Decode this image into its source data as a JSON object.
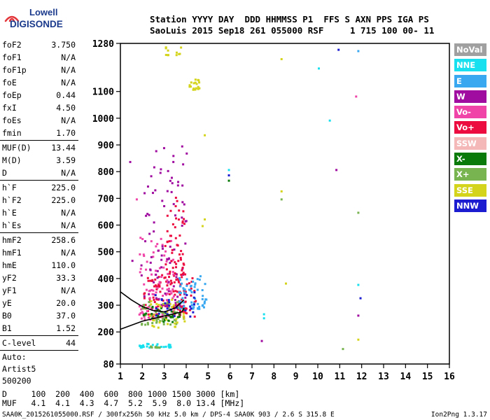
{
  "brand": {
    "line1": "Lowell",
    "line2": "DIGISONDE"
  },
  "header": {
    "row1": "Station YYYY DAY  DDD HHMMSS P1  FFS S AXN PPS IGA PS",
    "row2": "SaoLuis 2015 Sep18 261 055000 RSF     1 715 100 00- 11"
  },
  "params": {
    "group1": [
      [
        "foF2",
        "3.750"
      ],
      [
        "foF1",
        "N/A"
      ],
      [
        "foF1p",
        "N/A"
      ],
      [
        "foE",
        "N/A"
      ],
      [
        "foEp",
        "0.44"
      ],
      [
        "fxI",
        "4.50"
      ],
      [
        "foEs",
        "N/A"
      ],
      [
        "fmin",
        "1.70"
      ]
    ],
    "group2": [
      [
        "MUF(D)",
        "13.44"
      ],
      [
        "M(D)",
        "3.59"
      ],
      [
        "D",
        "N/A"
      ]
    ],
    "group3": [
      [
        "h`F",
        "225.0"
      ],
      [
        "h`F2",
        "225.0"
      ],
      [
        "h`E",
        "N/A"
      ],
      [
        "h`Es",
        "N/A"
      ]
    ],
    "group4": [
      [
        "hmF2",
        "258.6"
      ],
      [
        "hmF1",
        "N/A"
      ],
      [
        "hmE",
        "110.0"
      ],
      [
        "yF2",
        "33.3"
      ],
      [
        "yF1",
        "N/A"
      ],
      [
        "yE",
        "20.0"
      ],
      [
        "B0",
        "37.0"
      ],
      [
        "B1",
        "1.52"
      ]
    ],
    "group5": [
      [
        "C-level",
        "44"
      ]
    ],
    "auto": [
      "Auto:",
      "Artist5",
      "500200"
    ]
  },
  "legend": [
    {
      "label": "NoVal",
      "color": "#a0a0a0"
    },
    {
      "label": "NNE",
      "color": "#19e0ee"
    },
    {
      "label": "E",
      "color": "#3aa8f0"
    },
    {
      "label": "W",
      "color": "#a00ca0"
    },
    {
      "label": "Vo-",
      "color": "#f044a8"
    },
    {
      "label": "Vo+",
      "color": "#ec0c40"
    },
    {
      "label": "SSW",
      "color": "#f4b8b8"
    },
    {
      "label": "X-",
      "color": "#0a7a0a"
    },
    {
      "label": "X+",
      "color": "#78b450"
    },
    {
      "label": "SSE",
      "color": "#d4d41c"
    },
    {
      "label": "NNW",
      "color": "#1c1cd0"
    }
  ],
  "chart_data": {
    "type": "scatter",
    "xlim": [
      1,
      16
    ],
    "ylim": [
      80,
      1280
    ],
    "xticks": [
      "1",
      "2",
      "3",
      "4",
      "5",
      "6",
      "7",
      "8",
      "9",
      "10",
      "11",
      "12",
      "13",
      "14",
      "15",
      "16"
    ],
    "yticks": [
      {
        "v": 80,
        "label": "80"
      },
      {
        "v": 200,
        "label": "200"
      },
      {
        "v": 300,
        "label": "300"
      },
      {
        "v": 400,
        "label": "400"
      },
      {
        "v": 500,
        "label": "500"
      },
      {
        "v": 600,
        "label": "600"
      },
      {
        "v": 700,
        "label": "700"
      },
      {
        "v": 800,
        "label": "800"
      },
      {
        "v": 900,
        "label": "900"
      },
      {
        "v": 1000,
        "label": "1000"
      },
      {
        "v": 1100,
        "label": "1100"
      },
      {
        "v": 1280,
        "label": "1280"
      }
    ],
    "clusters": [
      {
        "series": "Vo+",
        "color": "#ec0c40",
        "x": [
          2.0,
          4.4
        ],
        "y": [
          260,
          420
        ],
        "n": 140
      },
      {
        "series": "Vo-",
        "color": "#f044a8",
        "x": [
          1.8,
          3.4
        ],
        "y": [
          250,
          560
        ],
        "n": 90
      },
      {
        "series": "W",
        "color": "#a00ca0",
        "x": [
          1.9,
          4.0
        ],
        "y": [
          300,
          900
        ],
        "n": 90
      },
      {
        "series": "Vo+",
        "color": "#ec0c40",
        "x": [
          3.0,
          3.9
        ],
        "y": [
          420,
          720
        ],
        "n": 50
      },
      {
        "series": "E",
        "color": "#3aa8f0",
        "x": [
          3.6,
          4.9
        ],
        "y": [
          290,
          420
        ],
        "n": 60
      },
      {
        "series": "X+",
        "color": "#78b450",
        "x": [
          1.9,
          3.6
        ],
        "y": [
          230,
          320
        ],
        "n": 45
      },
      {
        "series": "X-",
        "color": "#0a7a0a",
        "x": [
          2.0,
          4.0
        ],
        "y": [
          240,
          300
        ],
        "n": 30
      },
      {
        "series": "SSE",
        "color": "#d4d41c",
        "x": [
          2.3,
          4.0
        ],
        "y": [
          220,
          330
        ],
        "n": 30
      },
      {
        "series": "NNW",
        "color": "#1c1cd0",
        "x": [
          2.2,
          4.4
        ],
        "y": [
          260,
          360
        ],
        "n": 25
      },
      {
        "series": "NNE",
        "color": "#19e0ee",
        "x": [
          1.8,
          3.3
        ],
        "y": [
          145,
          160
        ],
        "n": 28
      },
      {
        "series": "X+",
        "color": "#78b450",
        "x": [
          2.3,
          2.8
        ],
        "y": [
          145,
          150
        ],
        "n": 10
      },
      {
        "series": "SSE",
        "color": "#d4d41c",
        "x": [
          4.0,
          4.6
        ],
        "y": [
          1110,
          1150
        ],
        "n": 18
      },
      {
        "series": "SSE",
        "color": "#d4d41c",
        "x": [
          3.0,
          3.8
        ],
        "y": [
          1240,
          1280
        ],
        "n": 12
      }
    ],
    "points": [
      {
        "x": 5.9,
        "y": 810,
        "color": "#19e0ee"
      },
      {
        "x": 5.9,
        "y": 790,
        "color": "#1c1cd0"
      },
      {
        "x": 5.9,
        "y": 770,
        "color": "#0a7a0a"
      },
      {
        "x": 7.5,
        "y": 270,
        "color": "#19e0ee"
      },
      {
        "x": 7.5,
        "y": 255,
        "color": "#19e0ee"
      },
      {
        "x": 7.4,
        "y": 170,
        "color": "#a00ca0"
      },
      {
        "x": 8.3,
        "y": 730,
        "color": "#d4d41c"
      },
      {
        "x": 8.3,
        "y": 700,
        "color": "#78b450"
      },
      {
        "x": 8.5,
        "y": 385,
        "color": "#d4d41c"
      },
      {
        "x": 8.3,
        "y": 1225,
        "color": "#d4d41c"
      },
      {
        "x": 10.0,
        "y": 1190,
        "color": "#19e0ee"
      },
      {
        "x": 10.5,
        "y": 995,
        "color": "#19e0ee"
      },
      {
        "x": 10.8,
        "y": 810,
        "color": "#a00ca0"
      },
      {
        "x": 10.9,
        "y": 1260,
        "color": "#1c1cd0"
      },
      {
        "x": 11.8,
        "y": 1255,
        "color": "#3aa8f0"
      },
      {
        "x": 11.7,
        "y": 1085,
        "color": "#f044a8"
      },
      {
        "x": 11.8,
        "y": 650,
        "color": "#78b450"
      },
      {
        "x": 11.8,
        "y": 380,
        "color": "#19e0ee"
      },
      {
        "x": 11.9,
        "y": 330,
        "color": "#1c1cd0"
      },
      {
        "x": 11.8,
        "y": 265,
        "color": "#a00ca0"
      },
      {
        "x": 11.8,
        "y": 175,
        "color": "#d4d41c"
      },
      {
        "x": 11.1,
        "y": 140,
        "color": "#78b450"
      },
      {
        "x": 4.8,
        "y": 625,
        "color": "#d4d41c"
      },
      {
        "x": 4.7,
        "y": 600,
        "color": "#d4d41c"
      },
      {
        "x": 4.8,
        "y": 940,
        "color": "#d4d41c"
      },
      {
        "x": 1.4,
        "y": 840,
        "color": "#a00ca0"
      },
      {
        "x": 1.7,
        "y": 700,
        "color": "#f044a8"
      },
      {
        "x": 1.5,
        "y": 470,
        "color": "#a00ca0"
      }
    ],
    "traces": [
      {
        "color": "#000",
        "pts": [
          [
            1.0,
            210
          ],
          [
            2.0,
            240
          ],
          [
            3.0,
            260
          ],
          [
            3.8,
            275
          ],
          [
            3.9,
            290
          ]
        ]
      },
      {
        "color": "#000",
        "pts": [
          [
            1.0,
            350
          ],
          [
            1.5,
            320
          ],
          [
            2.0,
            295
          ],
          [
            2.5,
            280
          ],
          [
            3.0,
            275
          ],
          [
            3.5,
            290
          ],
          [
            3.9,
            320
          ]
        ]
      }
    ]
  },
  "dmuf": {
    "d": "D     100  200  400  600  800 1000 1500 3000 [km]",
    "muf": "MUF   4.1  4.1  4.3  4.7  5.2  5.9  8.0 13.4 [MHz]"
  },
  "footer": {
    "left": "SAA0K_2015261055000.RSF / 300fx256h 50 kHz 5.0 km / DPS-4 SAA0K 903 / 2.6 S 315.8 E",
    "right": "Ion2Png 1.3.17"
  }
}
